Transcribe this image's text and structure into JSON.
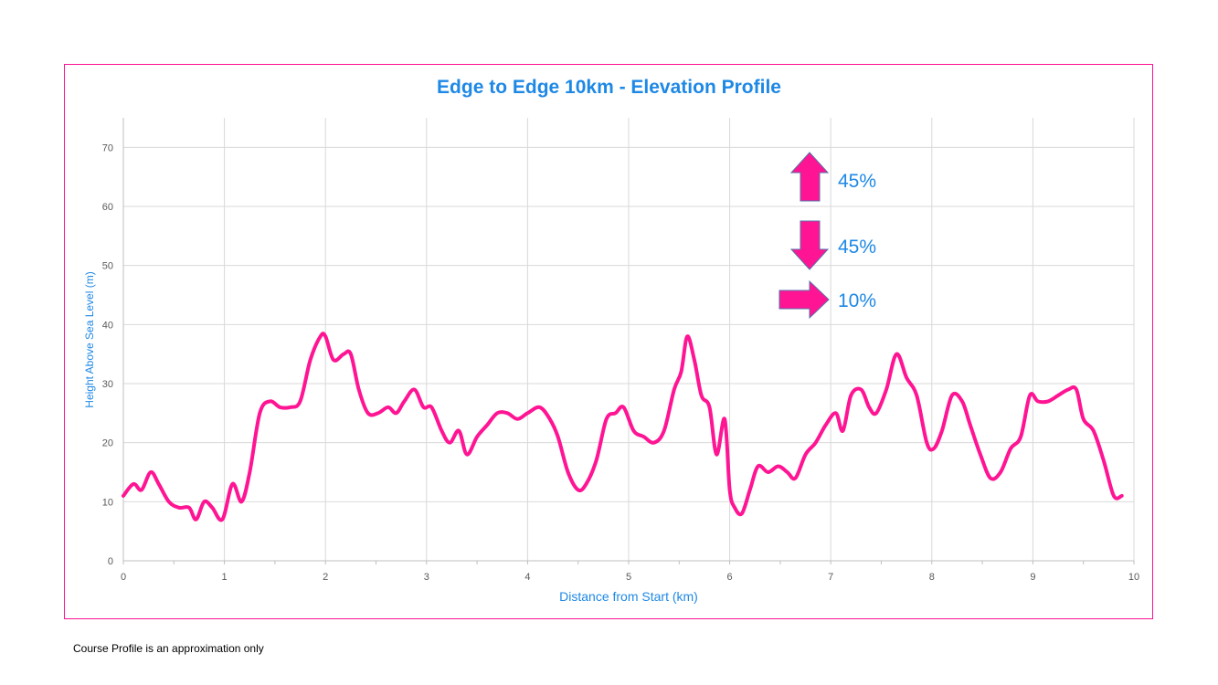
{
  "footnote": "Course Profile is an approximation only",
  "legend": {
    "up": {
      "icon": "arrow-up-icon",
      "label": "45%"
    },
    "down": {
      "icon": "arrow-down-icon",
      "label": "45%"
    },
    "flat": {
      "icon": "arrow-right-icon",
      "label": "10%"
    }
  },
  "colors": {
    "line": "#ff1493",
    "accent_text": "#1e88e5",
    "grid": "#d9d9d9",
    "tick_text": "#595959",
    "frame": "#ff1493"
  },
  "chart_data": {
    "type": "line",
    "title": "Edge to Edge 10km - Elevation Profile",
    "xlabel": "Distance from Start (km)",
    "ylabel": "Height Above Sea Level (m)",
    "xlim": [
      0,
      10
    ],
    "ylim": [
      0,
      75
    ],
    "xticks": [
      "0",
      "1",
      "2",
      "3",
      "4",
      "5",
      "6",
      "7",
      "8",
      "9",
      "10"
    ],
    "yticks": [
      "0",
      "10",
      "20",
      "30",
      "40",
      "50",
      "60",
      "70"
    ],
    "grid": true,
    "series": [
      {
        "x": [
          0,
          0.1,
          0.18,
          0.27,
          0.35,
          0.45,
          0.55,
          0.65,
          0.72,
          0.8,
          0.88,
          0.98,
          1.08,
          1.17,
          1.25,
          1.35,
          1.45,
          1.55,
          1.65,
          1.75,
          1.85,
          1.95,
          2.0,
          2.08,
          2.18,
          2.25,
          2.33,
          2.42,
          2.52,
          2.62,
          2.7,
          2.78,
          2.88,
          2.97,
          3.05,
          3.15,
          3.23,
          3.32,
          3.4,
          3.5,
          3.6,
          3.7,
          3.8,
          3.9,
          4.0,
          4.12,
          4.22,
          4.3,
          4.4,
          4.5,
          4.58,
          4.68,
          4.78,
          4.87,
          4.95,
          5.05,
          5.15,
          5.25,
          5.35,
          5.45,
          5.52,
          5.58,
          5.65,
          5.72,
          5.8,
          5.87,
          5.95,
          6.0,
          6.05,
          6.12,
          6.2,
          6.28,
          6.38,
          6.48,
          6.57,
          6.65,
          6.75,
          6.85,
          6.95,
          7.05,
          7.12,
          7.2,
          7.3,
          7.38,
          7.45,
          7.55,
          7.65,
          7.75,
          7.85,
          7.95,
          8.02,
          8.1,
          8.2,
          8.3,
          8.38,
          8.48,
          8.58,
          8.68,
          8.78,
          8.88,
          8.97,
          9.05,
          9.15,
          9.25,
          9.35,
          9.43,
          9.5,
          9.6,
          9.7,
          9.8,
          9.88
        ],
        "y": [
          11,
          13,
          12,
          15,
          13,
          10,
          9,
          9,
          7,
          10,
          9,
          7,
          13,
          10,
          15,
          25,
          27,
          26,
          26,
          27,
          34,
          38,
          38,
          34,
          35,
          35,
          29,
          25,
          25,
          26,
          25,
          27,
          29,
          26,
          26,
          22,
          20,
          22,
          18,
          21,
          23,
          25,
          25,
          24,
          25,
          26,
          24,
          21,
          15,
          12,
          13,
          17,
          24,
          25,
          26,
          22,
          21,
          20,
          22,
          29,
          32,
          38,
          34,
          28,
          26,
          18,
          24,
          12,
          9,
          8,
          12,
          16,
          15,
          16,
          15,
          14,
          18,
          20,
          23,
          25,
          22,
          28,
          29,
          26,
          25,
          29,
          35,
          31,
          28,
          20,
          19,
          22,
          28,
          27,
          23,
          18,
          14,
          15,
          19,
          21,
          28,
          27,
          27,
          28,
          29,
          29,
          24,
          22,
          17,
          11,
          11
        ]
      }
    ]
  }
}
